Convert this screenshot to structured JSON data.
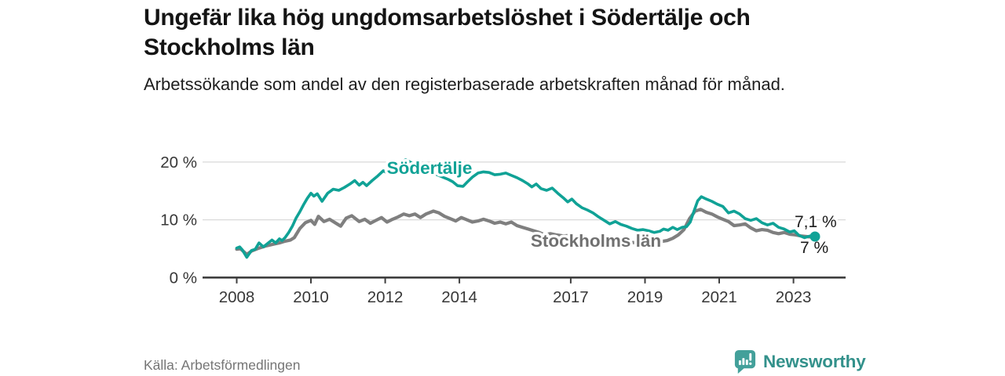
{
  "header": {
    "title": "Ungefär lika hög ungdomsarbetslöshet i Södertälje och Stockholms län",
    "subtitle": "Arbetssökande som andel av den registerbaserade arbetskraften månad för månad."
  },
  "footer": {
    "source": "Källa: Arbetsförmedlingen",
    "logo_text": "Newsworthy",
    "logo_color": "#43a09a",
    "logo_text_color": "#33918b"
  },
  "chart_data": {
    "type": "line",
    "title": "Ungefär lika hög ungdomsarbetslöshet i Södertälje och Stockholms län",
    "ylabel": "",
    "xlabel": "",
    "grid": "horizontal",
    "x_axis": {
      "ticks": [
        2008,
        2010,
        2012,
        2014,
        2017,
        2019,
        2021,
        2023
      ],
      "range": [
        2007.9,
        2023.9
      ]
    },
    "y_axis": {
      "ticks": [
        0,
        10,
        20
      ],
      "tick_labels": [
        "0 %",
        "10 %",
        "20 %"
      ],
      "gridlines": [
        10,
        20
      ],
      "range": [
        0,
        22
      ]
    },
    "series": [
      {
        "name": "Södertälje",
        "color": "#10a296",
        "label_color": "#10a296",
        "end_label": "7,1 %",
        "end_value": 7.1,
        "end_dot": true,
        "width": 3.6,
        "points": [
          [
            2008.0,
            5.1
          ],
          [
            2008.08,
            5.3
          ],
          [
            2008.15,
            4.8
          ],
          [
            2008.27,
            3.5
          ],
          [
            2008.4,
            4.7
          ],
          [
            2008.5,
            4.9
          ],
          [
            2008.6,
            6.0
          ],
          [
            2008.72,
            5.3
          ],
          [
            2008.85,
            6.0
          ],
          [
            2008.95,
            6.5
          ],
          [
            2009.05,
            6.0
          ],
          [
            2009.15,
            6.7
          ],
          [
            2009.22,
            6.4
          ],
          [
            2009.3,
            6.9
          ],
          [
            2009.4,
            7.8
          ],
          [
            2009.5,
            8.9
          ],
          [
            2009.6,
            10.3
          ],
          [
            2009.7,
            11.4
          ],
          [
            2009.8,
            12.6
          ],
          [
            2009.9,
            13.7
          ],
          [
            2010.0,
            14.6
          ],
          [
            2010.08,
            14.1
          ],
          [
            2010.17,
            14.5
          ],
          [
            2010.3,
            13.2
          ],
          [
            2010.45,
            14.6
          ],
          [
            2010.6,
            15.3
          ],
          [
            2010.75,
            15.1
          ],
          [
            2010.9,
            15.6
          ],
          [
            2011.05,
            16.2
          ],
          [
            2011.18,
            16.8
          ],
          [
            2011.3,
            16.0
          ],
          [
            2011.4,
            16.5
          ],
          [
            2011.5,
            15.9
          ],
          [
            2011.65,
            16.8
          ],
          [
            2011.8,
            17.6
          ],
          [
            2011.95,
            18.5
          ],
          [
            2012.1,
            18.0
          ],
          [
            2012.25,
            18.5
          ],
          [
            2012.4,
            19.9
          ],
          [
            2012.55,
            20.4
          ],
          [
            2012.7,
            19.9
          ],
          [
            2012.85,
            19.2
          ],
          [
            2013.0,
            18.6
          ],
          [
            2013.1,
            18.9
          ],
          [
            2013.25,
            18.3
          ],
          [
            2013.4,
            17.8
          ],
          [
            2013.55,
            17.4
          ],
          [
            2013.7,
            17.0
          ],
          [
            2013.82,
            16.6
          ],
          [
            2013.95,
            15.9
          ],
          [
            2014.1,
            15.8
          ],
          [
            2014.22,
            16.6
          ],
          [
            2014.35,
            17.4
          ],
          [
            2014.5,
            18.1
          ],
          [
            2014.65,
            18.3
          ],
          [
            2014.8,
            18.2
          ],
          [
            2014.95,
            17.8
          ],
          [
            2015.1,
            17.9
          ],
          [
            2015.25,
            18.1
          ],
          [
            2015.4,
            17.7
          ],
          [
            2015.55,
            17.3
          ],
          [
            2015.7,
            16.8
          ],
          [
            2015.85,
            16.2
          ],
          [
            2015.95,
            15.7
          ],
          [
            2016.07,
            16.2
          ],
          [
            2016.2,
            15.4
          ],
          [
            2016.35,
            15.1
          ],
          [
            2016.5,
            15.5
          ],
          [
            2016.65,
            14.6
          ],
          [
            2016.8,
            13.8
          ],
          [
            2016.92,
            13.1
          ],
          [
            2017.03,
            13.6
          ],
          [
            2017.15,
            12.8
          ],
          [
            2017.3,
            12.1
          ],
          [
            2017.45,
            11.7
          ],
          [
            2017.6,
            11.2
          ],
          [
            2017.75,
            10.5
          ],
          [
            2017.9,
            9.9
          ],
          [
            2018.05,
            9.3
          ],
          [
            2018.2,
            9.7
          ],
          [
            2018.35,
            9.2
          ],
          [
            2018.5,
            8.9
          ],
          [
            2018.65,
            8.5
          ],
          [
            2018.8,
            8.2
          ],
          [
            2018.95,
            8.3
          ],
          [
            2019.1,
            8.1
          ],
          [
            2019.25,
            7.8
          ],
          [
            2019.4,
            8.0
          ],
          [
            2019.5,
            8.4
          ],
          [
            2019.62,
            8.2
          ],
          [
            2019.75,
            8.7
          ],
          [
            2019.87,
            8.3
          ],
          [
            2020.0,
            8.7
          ],
          [
            2020.12,
            8.8
          ],
          [
            2020.22,
            9.6
          ],
          [
            2020.32,
            11.5
          ],
          [
            2020.42,
            13.3
          ],
          [
            2020.52,
            14.0
          ],
          [
            2020.65,
            13.6
          ],
          [
            2020.8,
            13.2
          ],
          [
            2020.95,
            12.7
          ],
          [
            2021.1,
            12.3
          ],
          [
            2021.25,
            11.2
          ],
          [
            2021.4,
            11.5
          ],
          [
            2021.55,
            11.0
          ],
          [
            2021.7,
            10.2
          ],
          [
            2021.85,
            9.9
          ],
          [
            2022.0,
            10.2
          ],
          [
            2022.15,
            9.5
          ],
          [
            2022.3,
            9.1
          ],
          [
            2022.45,
            9.4
          ],
          [
            2022.6,
            8.7
          ],
          [
            2022.75,
            8.4
          ],
          [
            2022.9,
            7.9
          ],
          [
            2023.02,
            8.1
          ],
          [
            2023.15,
            7.3
          ],
          [
            2023.3,
            6.9
          ],
          [
            2023.45,
            7.2
          ],
          [
            2023.58,
            7.1
          ]
        ]
      },
      {
        "name": "Stockholms län",
        "color": "#7f7f7f",
        "label_color": "#707070",
        "end_label": "7 %",
        "end_value": 7.0,
        "end_dot": false,
        "width": 4.2,
        "points": [
          [
            2008.0,
            4.9
          ],
          [
            2008.1,
            5.0
          ],
          [
            2008.27,
            4.0
          ],
          [
            2008.4,
            4.6
          ],
          [
            2008.6,
            5.1
          ],
          [
            2008.8,
            5.5
          ],
          [
            2009.0,
            5.8
          ],
          [
            2009.15,
            6.0
          ],
          [
            2009.3,
            6.3
          ],
          [
            2009.45,
            6.5
          ],
          [
            2009.55,
            6.9
          ],
          [
            2009.7,
            8.5
          ],
          [
            2009.85,
            9.5
          ],
          [
            2010.0,
            9.9
          ],
          [
            2010.1,
            9.2
          ],
          [
            2010.2,
            10.6
          ],
          [
            2010.35,
            9.7
          ],
          [
            2010.5,
            10.1
          ],
          [
            2010.65,
            9.5
          ],
          [
            2010.8,
            8.9
          ],
          [
            2010.95,
            10.3
          ],
          [
            2011.1,
            10.7
          ],
          [
            2011.3,
            9.7
          ],
          [
            2011.45,
            10.1
          ],
          [
            2011.6,
            9.4
          ],
          [
            2011.75,
            9.9
          ],
          [
            2011.9,
            10.4
          ],
          [
            2012.05,
            9.6
          ],
          [
            2012.2,
            10.1
          ],
          [
            2012.35,
            10.5
          ],
          [
            2012.5,
            11.0
          ],
          [
            2012.65,
            10.7
          ],
          [
            2012.8,
            11.0
          ],
          [
            2012.95,
            10.4
          ],
          [
            2013.1,
            11.0
          ],
          [
            2013.3,
            11.5
          ],
          [
            2013.45,
            11.2
          ],
          [
            2013.6,
            10.6
          ],
          [
            2013.75,
            10.2
          ],
          [
            2013.9,
            9.8
          ],
          [
            2014.05,
            10.4
          ],
          [
            2014.2,
            10.0
          ],
          [
            2014.35,
            9.6
          ],
          [
            2014.5,
            9.8
          ],
          [
            2014.65,
            10.1
          ],
          [
            2014.8,
            9.8
          ],
          [
            2014.95,
            9.4
          ],
          [
            2015.1,
            9.6
          ],
          [
            2015.25,
            9.3
          ],
          [
            2015.4,
            9.6
          ],
          [
            2015.55,
            9.0
          ],
          [
            2015.7,
            8.7
          ],
          [
            2015.85,
            8.4
          ],
          [
            2016.0,
            8.1
          ],
          [
            2016.15,
            7.8
          ],
          [
            2016.3,
            7.4
          ],
          [
            2016.45,
            7.6
          ],
          [
            2016.6,
            7.4
          ],
          [
            2016.8,
            7.2
          ],
          [
            2017.0,
            7.3
          ],
          [
            2017.2,
            7.0
          ],
          [
            2017.4,
            6.8
          ],
          [
            2017.6,
            6.6
          ],
          [
            2017.8,
            6.4
          ],
          [
            2018.0,
            6.3
          ],
          [
            2018.2,
            6.4
          ],
          [
            2018.4,
            6.2
          ],
          [
            2018.6,
            6.1
          ],
          [
            2018.8,
            6.0
          ],
          [
            2019.0,
            6.1
          ],
          [
            2019.2,
            6.0
          ],
          [
            2019.4,
            6.2
          ],
          [
            2019.6,
            6.4
          ],
          [
            2019.75,
            6.8
          ],
          [
            2019.9,
            7.4
          ],
          [
            2020.05,
            8.3
          ],
          [
            2020.2,
            10.2
          ],
          [
            2020.35,
            11.5
          ],
          [
            2020.5,
            11.8
          ],
          [
            2020.65,
            11.3
          ],
          [
            2020.8,
            11.0
          ],
          [
            2020.95,
            10.5
          ],
          [
            2021.1,
            10.1
          ],
          [
            2021.25,
            9.7
          ],
          [
            2021.4,
            9.0
          ],
          [
            2021.55,
            9.1
          ],
          [
            2021.7,
            9.3
          ],
          [
            2021.85,
            8.6
          ],
          [
            2022.0,
            8.1
          ],
          [
            2022.15,
            8.3
          ],
          [
            2022.3,
            8.2
          ],
          [
            2022.45,
            7.8
          ],
          [
            2022.6,
            7.6
          ],
          [
            2022.75,
            7.8
          ],
          [
            2022.9,
            7.5
          ],
          [
            2023.05,
            7.4
          ],
          [
            2023.2,
            7.2
          ],
          [
            2023.35,
            7.1
          ],
          [
            2023.5,
            7.0
          ],
          [
            2023.58,
            7.0
          ]
        ]
      }
    ]
  }
}
